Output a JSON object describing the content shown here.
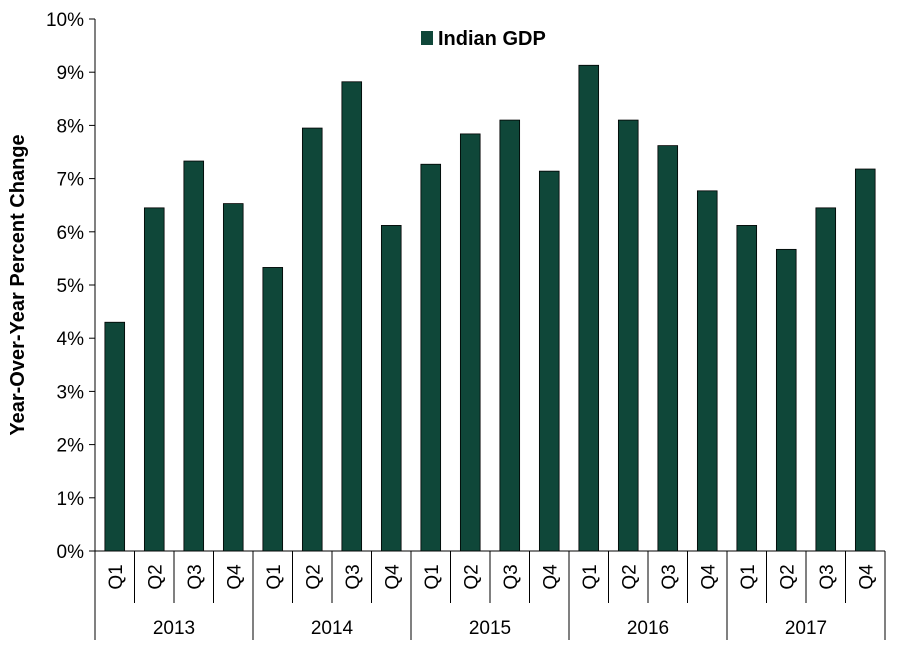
{
  "chart_data": {
    "type": "bar",
    "ylabel": "Year-Over-Year  Percent Change",
    "ylim": [
      0,
      10
    ],
    "y_ticks": [
      "0%",
      "1%",
      "2%",
      "3%",
      "4%",
      "5%",
      "6%",
      "7%",
      "8%",
      "9%",
      "10%"
    ],
    "grid": false,
    "legend_position": "top-center",
    "years": [
      "2013",
      "2014",
      "2015",
      "2016",
      "2017"
    ],
    "quarters": [
      "Q1",
      "Q2",
      "Q3",
      "Q4"
    ],
    "series": [
      {
        "name": "Indian GDP",
        "color": "#0f4739",
        "values": [
          4.3,
          6.45,
          7.33,
          6.53,
          5.33,
          7.95,
          8.82,
          6.12,
          7.27,
          7.84,
          8.1,
          7.14,
          9.13,
          8.1,
          7.62,
          6.77,
          6.12,
          5.67,
          6.45,
          7.18
        ]
      }
    ]
  }
}
